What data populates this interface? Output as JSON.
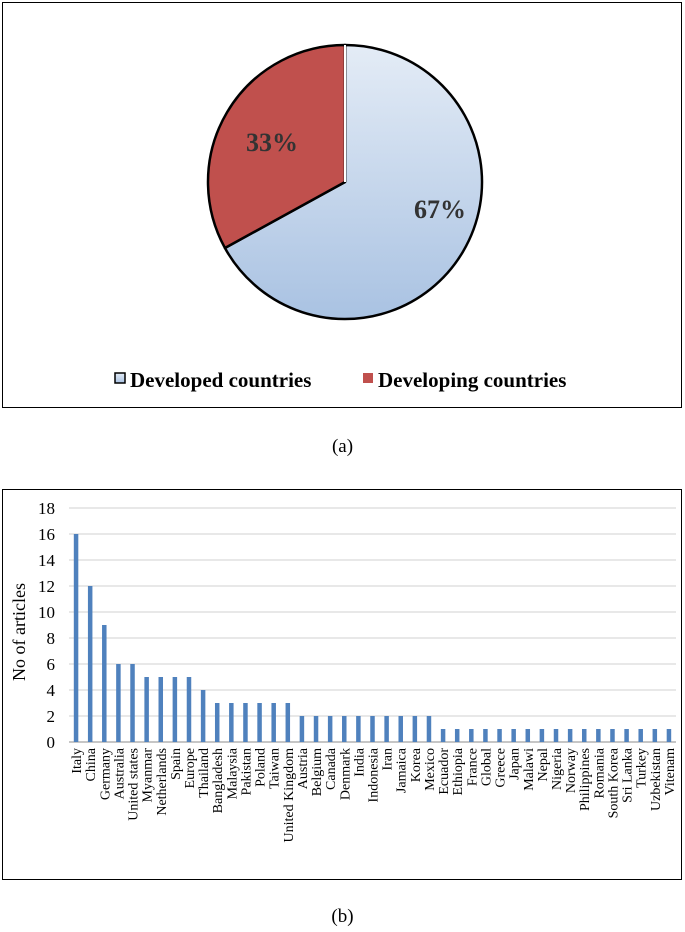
{
  "pie_chart": {
    "type": "pie",
    "slices": [
      {
        "label": "Developed countries",
        "value": 67,
        "display": "67%",
        "color": "#b8cde6"
      },
      {
        "label": "Developing countries",
        "value": 33,
        "display": "33%",
        "color": "#c0504d"
      }
    ],
    "legend": [
      "Developed countries",
      "Developing countries"
    ],
    "caption": "(a)"
  },
  "chart_data": {
    "type": "bar",
    "title": "",
    "xlabel": "",
    "ylabel": "No of articles",
    "ylim": [
      0,
      18
    ],
    "yticks": [
      0,
      2,
      4,
      6,
      8,
      10,
      12,
      14,
      16,
      18
    ],
    "categories": [
      "Italy",
      "China",
      "Germany",
      "Australia",
      "United states",
      "Myanmar",
      "Netherlands",
      "Spain",
      "Europe",
      "Thailand",
      "Bangladesh",
      "Malaysia",
      "Pakistan",
      "Poland",
      "Taiwan",
      "United Kingdom",
      "Austria",
      "Belgium",
      "Canada",
      "Denmark",
      "India",
      "Indonesia",
      "Iran",
      "Jamaica",
      "Korea",
      "Mexico",
      "Ecuador",
      "Ethiopia",
      "France",
      "Global",
      "Greece",
      "Japan",
      "Malawi",
      "Nepal",
      "Nigeria",
      "Norway",
      "Philippines",
      "Romania",
      "South Korea",
      "Sri Lanka",
      "Turkey",
      "Uzbekistan",
      "Vitenam"
    ],
    "values": [
      16,
      12,
      9,
      6,
      6,
      5,
      5,
      5,
      5,
      4,
      3,
      3,
      3,
      3,
      3,
      3,
      2,
      2,
      2,
      2,
      2,
      2,
      2,
      2,
      2,
      2,
      1,
      1,
      1,
      1,
      1,
      1,
      1,
      1,
      1,
      1,
      1,
      1,
      1,
      1,
      1,
      1,
      1
    ],
    "bar_color": "#4f81bd",
    "grid": true,
    "caption": "(b)"
  }
}
